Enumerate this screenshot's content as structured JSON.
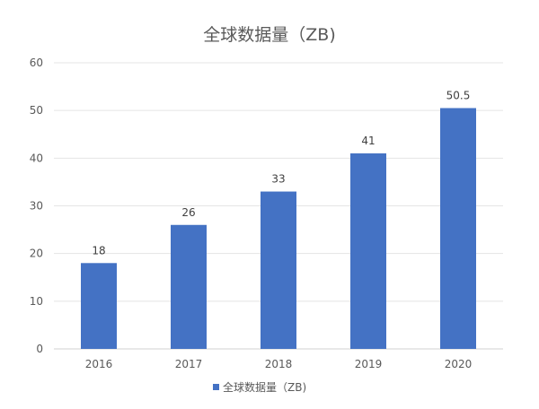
{
  "chart_data": {
    "type": "bar",
    "title": "全球数据量（ZB)",
    "categories": [
      "2016",
      "2017",
      "2018",
      "2019",
      "2020"
    ],
    "series": [
      {
        "name": "全球数据量（ZB)",
        "values": [
          18,
          26,
          33,
          41,
          50.5
        ],
        "color": "#4472C4"
      }
    ],
    "data_labels": [
      "18",
      "26",
      "33",
      "41",
      "50.5"
    ],
    "xlabel": "",
    "ylabel": "",
    "ylim": [
      0,
      60
    ],
    "yticks": [
      "0",
      "10",
      "20",
      "30",
      "40",
      "50",
      "60"
    ],
    "grid": true,
    "legend": "bottom",
    "legend_label": "全球数据量（ZB)"
  }
}
